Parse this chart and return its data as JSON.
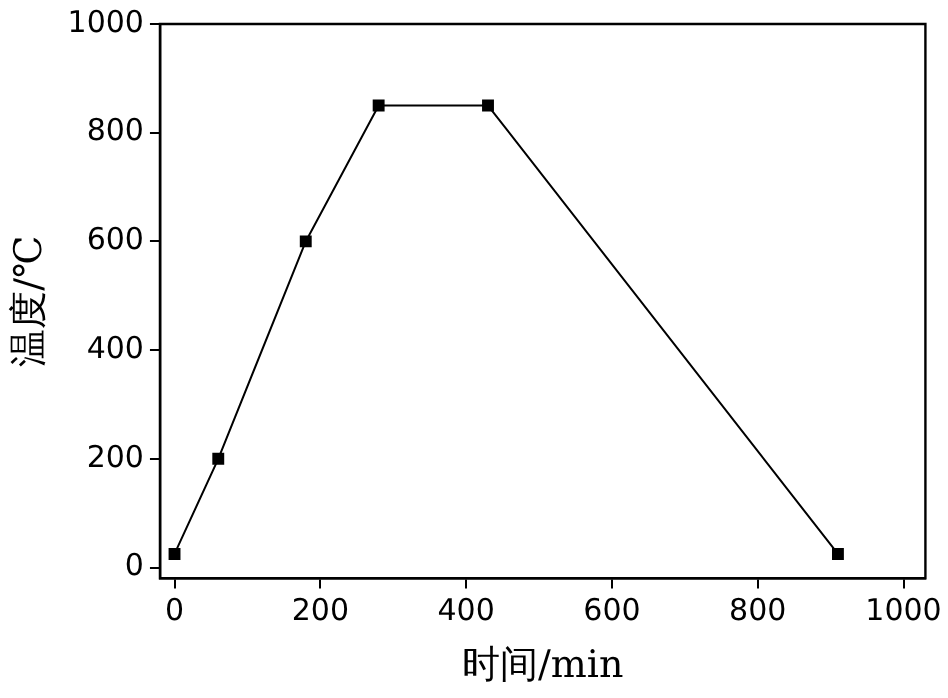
{
  "chart_data": {
    "type": "line",
    "xlabel": "时间/min",
    "ylabel": "温度/℃",
    "x": [
      0,
      60,
      180,
      280,
      430,
      910
    ],
    "series": [
      {
        "color": "#000000",
        "values": [
          25,
          200,
          600,
          850,
          850,
          25
        ]
      }
    ],
    "xlim": [
      -20,
      1030
    ],
    "xticks": [
      0,
      200,
      400,
      600,
      800,
      1000
    ],
    "ylim": [
      -20,
      1000
    ],
    "yticks": [
      0,
      200,
      400,
      600,
      800,
      1000
    ],
    "grid": false,
    "legend": false,
    "marker": "square",
    "line_style": "solid"
  }
}
